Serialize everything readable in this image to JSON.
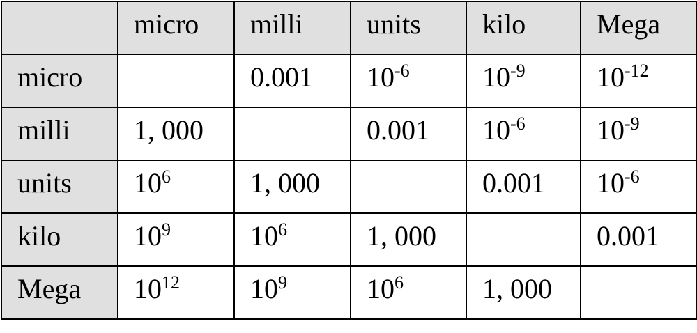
{
  "table": {
    "columns": [
      "micro",
      "milli",
      "units",
      "kilo",
      "Mega"
    ],
    "rows": [
      {
        "label": "micro",
        "cells": [
          null,
          "0.001",
          {
            "base": "10",
            "exp": "-6"
          },
          {
            "base": "10",
            "exp": "-9"
          },
          {
            "base": "10",
            "exp": "-12"
          }
        ]
      },
      {
        "label": "milli",
        "cells": [
          "1, 000",
          null,
          "0.001",
          {
            "base": "10",
            "exp": "-6"
          },
          {
            "base": "10",
            "exp": "-9"
          }
        ]
      },
      {
        "label": "units",
        "cells": [
          {
            "base": "10",
            "exp": "6"
          },
          "1, 000",
          null,
          "0.001",
          {
            "base": "10",
            "exp": "-6"
          }
        ]
      },
      {
        "label": "kilo",
        "cells": [
          {
            "base": "10",
            "exp": "9"
          },
          {
            "base": "10",
            "exp": "6"
          },
          "1, 000",
          null,
          "0.001"
        ]
      },
      {
        "label": "Mega",
        "cells": [
          {
            "base": "10",
            "exp": "12"
          },
          {
            "base": "10",
            "exp": "9"
          },
          {
            "base": "10",
            "exp": "6"
          },
          "1, 000",
          null
        ]
      }
    ]
  }
}
